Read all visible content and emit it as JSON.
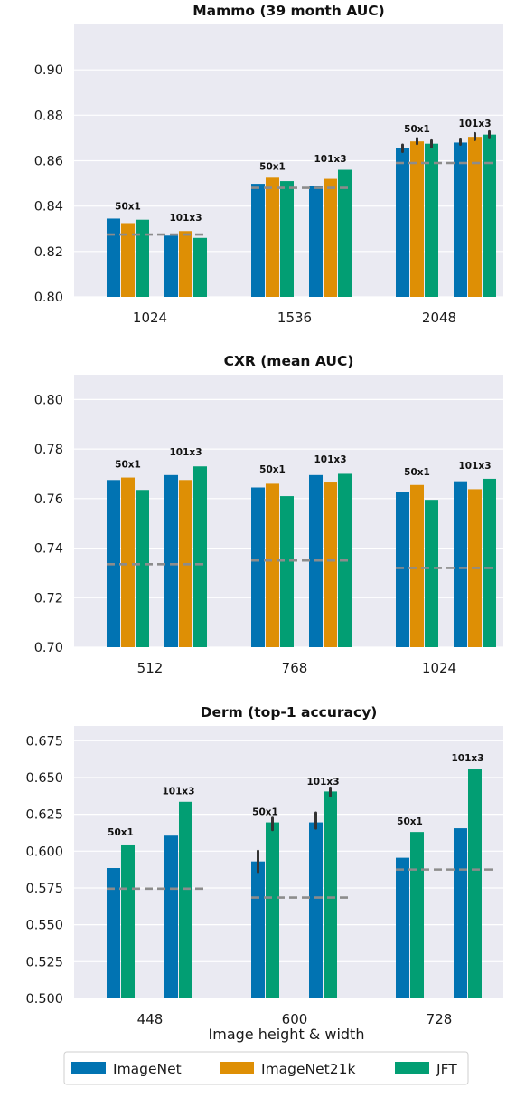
{
  "colors": {
    "ImageNet": "#0173b2",
    "ImageNet21k": "#de8f05",
    "JFT": "#029e73",
    "baseline": "#8c8c8c",
    "errorbar": "#333333",
    "panel_bg": "#eaeaf2",
    "grid": "#ffffff"
  },
  "xlabel": "Image height & width",
  "legend": [
    "ImageNet",
    "ImageNet21k",
    "JFT"
  ],
  "chart_data": [
    {
      "type": "bar",
      "title": "Mammo (39 month AUC)",
      "ylim": [
        0.8,
        0.92
      ],
      "yticks": [
        "0.80",
        "0.82",
        "0.84",
        "0.86",
        "0.88",
        "0.90"
      ],
      "categories": [
        "1024",
        "1536",
        "2048"
      ],
      "group_labels": [
        "50x1",
        "101x3"
      ],
      "grid": true,
      "groups": [
        {
          "category": "1024",
          "model": "50x1",
          "values": {
            "ImageNet": 0.8345,
            "ImageNet21k": 0.8325,
            "JFT": 0.834
          },
          "label_y": 0.8385,
          "errors": {}
        },
        {
          "category": "1024",
          "model": "101x3",
          "values": {
            "ImageNet": 0.827,
            "ImageNet21k": 0.829,
            "JFT": 0.826
          },
          "label_y": 0.8335,
          "errors": {}
        },
        {
          "category": "1536",
          "model": "50x1",
          "values": {
            "ImageNet": 0.8498,
            "ImageNet21k": 0.8525,
            "JFT": 0.851
          },
          "label_y": 0.856,
          "errors": {}
        },
        {
          "category": "1536",
          "model": "101x3",
          "values": {
            "ImageNet": 0.849,
            "ImageNet21k": 0.852,
            "JFT": 0.856
          },
          "label_y": 0.8595,
          "errors": {}
        },
        {
          "category": "2048",
          "model": "50x1",
          "values": {
            "ImageNet": 0.8655,
            "ImageNet21k": 0.8685,
            "JFT": 0.8675
          },
          "label_y": 0.8725,
          "errors": {
            "ImageNet": [
              0.864,
              0.867
            ],
            "ImageNet21k": [
              0.8675,
              0.8698
            ],
            "JFT": [
              0.866,
              0.8688
            ]
          }
        },
        {
          "category": "2048",
          "model": "101x3",
          "values": {
            "ImageNet": 0.868,
            "ImageNet21k": 0.8705,
            "JFT": 0.8715
          },
          "label_y": 0.875,
          "errors": {
            "ImageNet": [
              0.8672,
              0.8692
            ],
            "ImageNet21k": [
              0.8692,
              0.872
            ],
            "JFT": [
              0.87,
              0.8728
            ]
          }
        }
      ],
      "baselines": [
        {
          "category": "1024",
          "value": 0.8275
        },
        {
          "category": "1536",
          "value": 0.848
        },
        {
          "category": "2048",
          "value": 0.859
        }
      ]
    },
    {
      "type": "bar",
      "title": "CXR (mean AUC)",
      "ylim": [
        0.7,
        0.81
      ],
      "yticks": [
        "0.70",
        "0.72",
        "0.74",
        "0.76",
        "0.78",
        "0.80"
      ],
      "categories": [
        "512",
        "768",
        "1024"
      ],
      "group_labels": [
        "50x1",
        "101x3"
      ],
      "grid": true,
      "groups": [
        {
          "category": "512",
          "model": "50x1",
          "values": {
            "ImageNet": 0.7675,
            "ImageNet21k": 0.7685,
            "JFT": 0.7635
          },
          "label_y": 0.7725,
          "errors": {}
        },
        {
          "category": "512",
          "model": "101x3",
          "values": {
            "ImageNet": 0.7695,
            "ImageNet21k": 0.7675,
            "JFT": 0.773
          },
          "label_y": 0.7775,
          "errors": {}
        },
        {
          "category": "768",
          "model": "50x1",
          "values": {
            "ImageNet": 0.7645,
            "ImageNet21k": 0.766,
            "JFT": 0.761
          },
          "label_y": 0.7705,
          "errors": {}
        },
        {
          "category": "768",
          "model": "101x3",
          "values": {
            "ImageNet": 0.7695,
            "ImageNet21k": 0.7665,
            "JFT": 0.77
          },
          "label_y": 0.7745,
          "errors": {}
        },
        {
          "category": "1024",
          "model": "50x1",
          "values": {
            "ImageNet": 0.7625,
            "ImageNet21k": 0.7655,
            "JFT": 0.7595
          },
          "label_y": 0.7695,
          "errors": {}
        },
        {
          "category": "1024",
          "model": "101x3",
          "values": {
            "ImageNet": 0.767,
            "ImageNet21k": 0.7638,
            "JFT": 0.768
          },
          "label_y": 0.772,
          "errors": {}
        }
      ],
      "baselines": [
        {
          "category": "512",
          "value": 0.7335
        },
        {
          "category": "768",
          "value": 0.735
        },
        {
          "category": "1024",
          "value": 0.732
        }
      ]
    },
    {
      "type": "bar",
      "title": "Derm (top-1 accuracy)",
      "ylim": [
        0.5,
        0.685
      ],
      "yticks": [
        "0.500",
        "0.525",
        "0.550",
        "0.575",
        "0.600",
        "0.625",
        "0.650",
        "0.675"
      ],
      "categories": [
        "448",
        "600",
        "728"
      ],
      "group_labels": [
        "50x1",
        "101x3"
      ],
      "grid": true,
      "groups": [
        {
          "category": "448",
          "model": "50x1",
          "values": {
            "ImageNet": 0.5885,
            "JFT": 0.6045
          },
          "label_y": 0.6105,
          "errors": {}
        },
        {
          "category": "448",
          "model": "101x3",
          "values": {
            "ImageNet": 0.6105,
            "JFT": 0.6335
          },
          "label_y": 0.6385,
          "errors": {}
        },
        {
          "category": "600",
          "model": "50x1",
          "values": {
            "ImageNet": 0.593,
            "JFT": 0.6195
          },
          "label_y": 0.6245,
          "errors": {
            "ImageNet": [
              0.586,
              0.6
            ],
            "JFT": [
              0.6145,
              0.6225
            ]
          }
        },
        {
          "category": "600",
          "model": "101x3",
          "values": {
            "ImageNet": 0.6195,
            "JFT": 0.6405
          },
          "label_y": 0.645,
          "errors": {
            "ImageNet": [
              0.6155,
              0.626
            ],
            "JFT": [
              0.6375,
              0.643
            ]
          }
        },
        {
          "category": "728",
          "model": "50x1",
          "values": {
            "ImageNet": 0.5955,
            "JFT": 0.613
          },
          "label_y": 0.618,
          "errors": {}
        },
        {
          "category": "728",
          "model": "101x3",
          "values": {
            "ImageNet": 0.6155,
            "JFT": 0.656
          },
          "label_y": 0.661,
          "errors": {}
        }
      ],
      "baselines": [
        {
          "category": "448",
          "value": 0.5745
        },
        {
          "category": "600",
          "value": 0.5685
        },
        {
          "category": "728",
          "value": 0.5875
        }
      ]
    }
  ]
}
